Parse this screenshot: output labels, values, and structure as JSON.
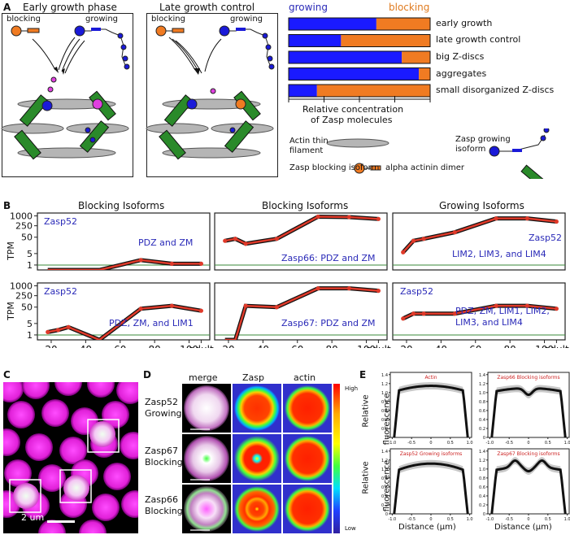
{
  "panel_labels": {
    "a": "A",
    "b": "B",
    "c": "C",
    "d": "D",
    "e": "E"
  },
  "panel_a": {
    "left_title": "Early growth phase",
    "right_title": "Late growth control",
    "blocking": "blocking",
    "growing": "growing",
    "legend_actin": "Actin thin filament",
    "legend_growing": "Zasp growing isoform",
    "legend_blocking": "Zasp blocking isoform",
    "legend_alpha": "alpha actinin dimer"
  },
  "bars": {
    "header_growing": "growing",
    "header_blocking": "blocking",
    "growing_color": "#1a1aff",
    "blocking_color": "#f07b22",
    "rows": [
      {
        "label": "early growth",
        "growing": 0.62
      },
      {
        "label": "late growth control",
        "growing": 0.37
      },
      {
        "label": "big Z-discs",
        "growing": 0.8
      },
      {
        "label": "aggregates",
        "growing": 0.92
      },
      {
        "label": "small disorganized Z-discs",
        "growing": 0.2
      }
    ],
    "axis_label_1": "Relative concentration",
    "axis_label_2": "of Zasp molecules"
  },
  "panel_b": {
    "titles": [
      "Blocking Isoforms",
      "Blocking Isoforms",
      "Growing Isoforms"
    ],
    "ylabel": "TPM",
    "ytick_labels": [
      "1000",
      "250",
      "50",
      "5",
      "1"
    ],
    "xtick_labels": [
      "20",
      "40",
      "60",
      "80",
      "100",
      "adult"
    ],
    "subplots": [
      {
        "gene": "Zasp52",
        "domains": "PDZ and ZM"
      },
      {
        "gene": "",
        "domains": "Zasp66: PDZ and ZM"
      },
      {
        "gene": "Zasp52",
        "domains": "LIM2, LIM3, and LIM4"
      },
      {
        "gene": "Zasp52",
        "domains": "PDZ, ZM, and  LIM1"
      },
      {
        "gene": "",
        "domains": "Zasp67: PDZ and ZM"
      },
      {
        "gene": "Zasp52",
        "domains": "PDZ, ZM, LIM1, LIM2, LIM3, and LIM4"
      }
    ]
  },
  "chart_data": [
    {
      "type": "line",
      "title": "Blocking Isoforms — Zasp52 PDZ and ZM",
      "x": [
        18,
        30,
        48,
        72,
        90,
        107
      ],
      "y": [
        0.05,
        0.08,
        0.2,
        2,
        1.2,
        1.2
      ],
      "ylabel": "TPM",
      "ylim": [
        1,
        1000
      ]
    },
    {
      "type": "line",
      "title": "Blocking Isoforms — Zasp66: PDZ and ZM",
      "x": [
        18,
        24,
        30,
        48,
        72,
        90,
        107
      ],
      "y": [
        30,
        40,
        20,
        40,
        900,
        850,
        650
      ],
      "ylabel": "TPM",
      "ylim": [
        1,
        1000
      ]
    },
    {
      "type": "line",
      "title": "Growing Isoforms — Zasp52 LIM2, LIM3, and LIM4",
      "x": [
        18,
        24,
        30,
        48,
        72,
        90,
        107
      ],
      "y": [
        6,
        30,
        40,
        100,
        700,
        700,
        450
      ],
      "ylabel": "TPM",
      "ylim": [
        1,
        1000
      ]
    },
    {
      "type": "line",
      "title": "Zasp52 PDZ, ZM, and LIM1",
      "x": [
        18,
        24,
        30,
        48,
        72,
        90,
        107
      ],
      "y": [
        1.5,
        2,
        3,
        0.5,
        40,
        60,
        30
      ],
      "ylabel": "TPM",
      "ylim": [
        1,
        1000
      ]
    },
    {
      "type": "line",
      "title": "Zasp67: PDZ and ZM",
      "x": [
        18,
        24,
        30,
        48,
        72,
        90,
        107
      ],
      "y": [
        0.2,
        0.5,
        60,
        50,
        700,
        700,
        500
      ],
      "ylabel": "TPM",
      "ylim": [
        1,
        1000
      ]
    },
    {
      "type": "line",
      "title": "Zasp52 PDZ, ZM, LIM1, LIM2, LIM3, and LIM4",
      "x": [
        18,
        24,
        30,
        48,
        72,
        90,
        107
      ],
      "y": [
        10,
        20,
        20,
        20,
        60,
        60,
        40
      ],
      "ylabel": "TPM",
      "ylim": [
        1,
        1000
      ]
    }
  ],
  "panel_c": {
    "scale": "2 um"
  },
  "panel_d": {
    "col_headers": [
      "merge",
      "Zasp",
      "actin"
    ],
    "row_labels": [
      [
        "Zasp52",
        "Growing"
      ],
      [
        "Zasp67",
        "Blocking"
      ],
      [
        "Zasp66",
        "Blocking"
      ]
    ],
    "colorbar_high": "High",
    "colorbar_low": "Low"
  },
  "panel_e": {
    "titles": [
      "Actin",
      "Zasp66 Blocking isoforms",
      "Zasp52 Growing isoforms",
      "Zasp67 Blocking isoforms"
    ],
    "ylabel_1": "Relative",
    "ylabel_2": "fluorescence",
    "xlabel": "Distance (μm)",
    "yticks": [
      "1.4",
      "1.2",
      "1.0",
      "0.8",
      "0.6",
      "0.4",
      "0.2",
      "0"
    ],
    "xticks": [
      "-1.0",
      "-0.5",
      "0",
      "0.5",
      "1.0"
    ]
  }
}
